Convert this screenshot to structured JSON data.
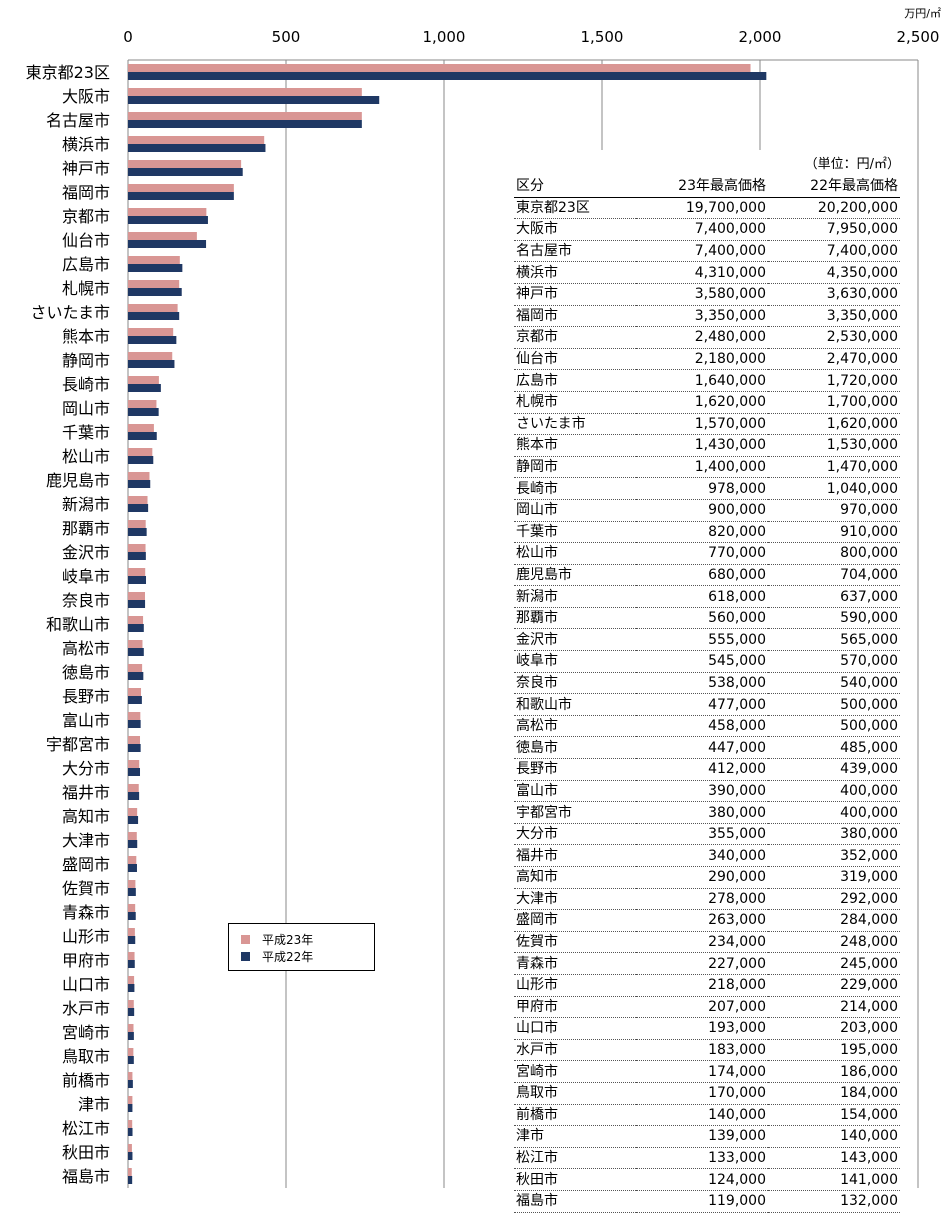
{
  "chart_data": {
    "type": "bar",
    "orientation": "horizontal",
    "unit_label": "万円/㎡",
    "xlim": [
      0,
      2500
    ],
    "x_ticks": [
      "0",
      "500",
      "1,000",
      "1,500",
      "2,000",
      "2,500"
    ],
    "x_tick_values": [
      0,
      500,
      1000,
      1500,
      2000,
      2500
    ],
    "grid": true,
    "legend_position": "lower-center",
    "categories": [
      "東京都23区",
      "大阪市",
      "名古屋市",
      "横浜市",
      "神戸市",
      "福岡市",
      "京都市",
      "仙台市",
      "広島市",
      "札幌市",
      "さいたま市",
      "熊本市",
      "静岡市",
      "長崎市",
      "岡山市",
      "千葉市",
      "松山市",
      "鹿児島市",
      "新潟市",
      "那覇市",
      "金沢市",
      "岐阜市",
      "奈良市",
      "和歌山市",
      "高松市",
      "徳島市",
      "長野市",
      "富山市",
      "宇都宮市",
      "大分市",
      "福井市",
      "高知市",
      "大津市",
      "盛岡市",
      "佐賀市",
      "青森市",
      "山形市",
      "甲府市",
      "山口市",
      "水戸市",
      "宮崎市",
      "鳥取市",
      "前橋市",
      "津市",
      "松江市",
      "秋田市",
      "福島市"
    ],
    "series": [
      {
        "name": "平成23年",
        "color": "#D99694",
        "values": [
          1970,
          740,
          740,
          431,
          358,
          335,
          248,
          218,
          164,
          162,
          157,
          143,
          140,
          97.8,
          90,
          82,
          77,
          68,
          61.8,
          56,
          55.5,
          54.5,
          53.8,
          47.7,
          45.8,
          44.7,
          41.2,
          39,
          38,
          35.5,
          34,
          29,
          27.8,
          26.3,
          23.4,
          22.7,
          21.8,
          20.7,
          19.3,
          18.3,
          17.4,
          17,
          14,
          13.9,
          13.3,
          12.4,
          11.9
        ]
      },
      {
        "name": "平成22年",
        "color": "#1F3864",
        "values": [
          2020,
          795,
          740,
          435,
          363,
          335,
          253,
          247,
          172,
          170,
          162,
          153,
          147,
          104,
          97,
          91,
          80,
          70.4,
          63.7,
          59,
          56.5,
          57,
          54,
          50,
          50,
          48.5,
          43.9,
          40,
          40,
          38,
          35.2,
          31.9,
          29.2,
          28.4,
          24.8,
          24.5,
          22.9,
          21.4,
          20.3,
          19.5,
          18.6,
          18.4,
          15.4,
          14,
          14.3,
          14.1,
          13.2
        ]
      }
    ]
  },
  "legend": {
    "items": [
      {
        "label": "平成23年",
        "color": "#D99694"
      },
      {
        "label": "平成22年",
        "color": "#1F3864"
      }
    ]
  },
  "table": {
    "unit": "（単位：円/㎡）",
    "headers": [
      "区分",
      "23年最高価格",
      "22年最高価格"
    ],
    "rows": [
      [
        "東京都23区",
        "19,700,000",
        "20,200,000"
      ],
      [
        "大阪市",
        "7,400,000",
        "7,950,000"
      ],
      [
        "名古屋市",
        "7,400,000",
        "7,400,000"
      ],
      [
        "横浜市",
        "4,310,000",
        "4,350,000"
      ],
      [
        "神戸市",
        "3,580,000",
        "3,630,000"
      ],
      [
        "福岡市",
        "3,350,000",
        "3,350,000"
      ],
      [
        "京都市",
        "2,480,000",
        "2,530,000"
      ],
      [
        "仙台市",
        "2,180,000",
        "2,470,000"
      ],
      [
        "広島市",
        "1,640,000",
        "1,720,000"
      ],
      [
        "札幌市",
        "1,620,000",
        "1,700,000"
      ],
      [
        "さいたま市",
        "1,570,000",
        "1,620,000"
      ],
      [
        "熊本市",
        "1,430,000",
        "1,530,000"
      ],
      [
        "静岡市",
        "1,400,000",
        "1,470,000"
      ],
      [
        "長崎市",
        "978,000",
        "1,040,000"
      ],
      [
        "岡山市",
        "900,000",
        "970,000"
      ],
      [
        "千葉市",
        "820,000",
        "910,000"
      ],
      [
        "松山市",
        "770,000",
        "800,000"
      ],
      [
        "鹿児島市",
        "680,000",
        "704,000"
      ],
      [
        "新潟市",
        "618,000",
        "637,000"
      ],
      [
        "那覇市",
        "560,000",
        "590,000"
      ],
      [
        "金沢市",
        "555,000",
        "565,000"
      ],
      [
        "岐阜市",
        "545,000",
        "570,000"
      ],
      [
        "奈良市",
        "538,000",
        "540,000"
      ],
      [
        "和歌山市",
        "477,000",
        "500,000"
      ],
      [
        "高松市",
        "458,000",
        "500,000"
      ],
      [
        "徳島市",
        "447,000",
        "485,000"
      ],
      [
        "長野市",
        "412,000",
        "439,000"
      ],
      [
        "富山市",
        "390,000",
        "400,000"
      ],
      [
        "宇都宮市",
        "380,000",
        "400,000"
      ],
      [
        "大分市",
        "355,000",
        "380,000"
      ],
      [
        "福井市",
        "340,000",
        "352,000"
      ],
      [
        "高知市",
        "290,000",
        "319,000"
      ],
      [
        "大津市",
        "278,000",
        "292,000"
      ],
      [
        "盛岡市",
        "263,000",
        "284,000"
      ],
      [
        "佐賀市",
        "234,000",
        "248,000"
      ],
      [
        "青森市",
        "227,000",
        "245,000"
      ],
      [
        "山形市",
        "218,000",
        "229,000"
      ],
      [
        "甲府市",
        "207,000",
        "214,000"
      ],
      [
        "山口市",
        "193,000",
        "203,000"
      ],
      [
        "水戸市",
        "183,000",
        "195,000"
      ],
      [
        "宮崎市",
        "174,000",
        "186,000"
      ],
      [
        "鳥取市",
        "170,000",
        "184,000"
      ],
      [
        "前橋市",
        "140,000",
        "154,000"
      ],
      [
        "津市",
        "139,000",
        "140,000"
      ],
      [
        "松江市",
        "133,000",
        "143,000"
      ],
      [
        "秋田市",
        "124,000",
        "141,000"
      ],
      [
        "福島市",
        "119,000",
        "132,000"
      ]
    ]
  }
}
